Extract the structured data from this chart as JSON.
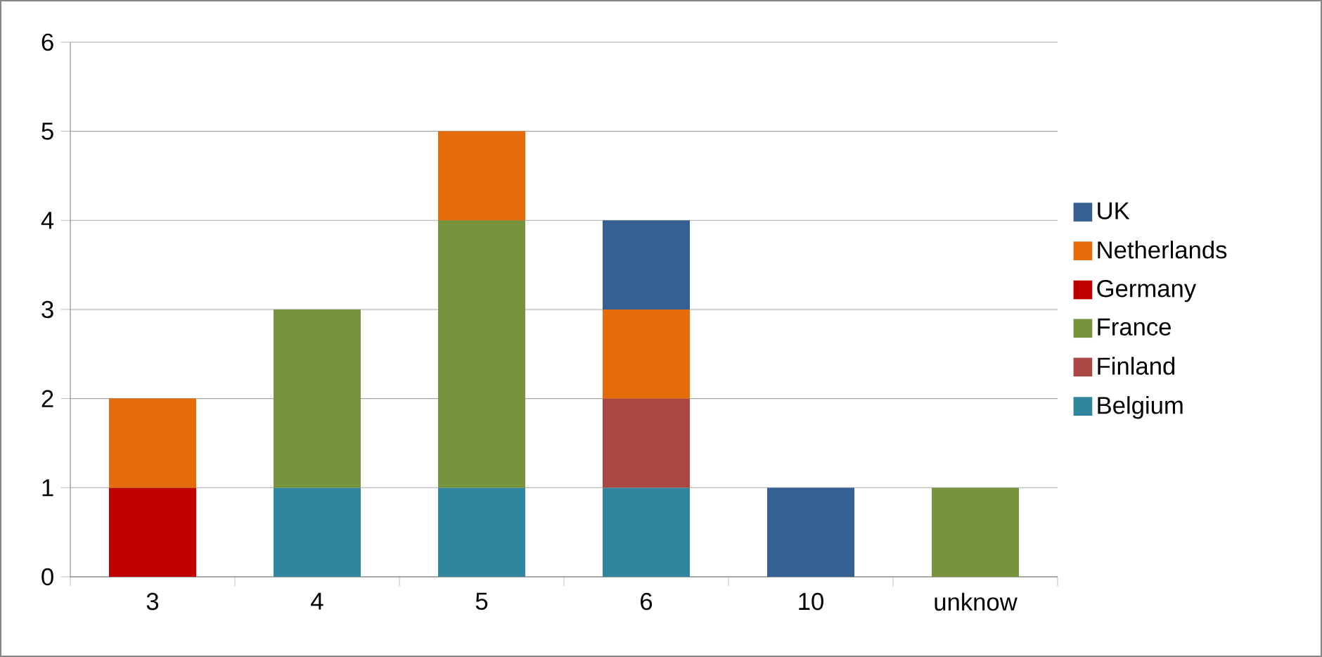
{
  "chart_data": {
    "type": "bar",
    "stacked": true,
    "categories": [
      "3",
      "4",
      "5",
      "6",
      "10",
      "unknow"
    ],
    "series": [
      {
        "name": "Belgium",
        "color": "#31859c",
        "values": [
          null,
          1,
          1,
          1,
          null,
          null
        ]
      },
      {
        "name": "Finland",
        "color": "#aa4643",
        "values": [
          null,
          null,
          null,
          1,
          null,
          null
        ]
      },
      {
        "name": "France",
        "color": "#77933c",
        "values": [
          null,
          2,
          3,
          null,
          null,
          1
        ]
      },
      {
        "name": "Germany",
        "color": "#c00000",
        "values": [
          1,
          null,
          null,
          null,
          null,
          null
        ]
      },
      {
        "name": "Netherlands",
        "color": "#e46c0a",
        "values": [
          1,
          null,
          1,
          1,
          null,
          null
        ]
      },
      {
        "name": "UK",
        "color": "#376092",
        "values": [
          null,
          null,
          null,
          1,
          1,
          null
        ]
      }
    ],
    "ylim": [
      0,
      6
    ],
    "yticks": [
      0,
      1,
      2,
      3,
      4,
      5,
      6
    ],
    "grid": "y",
    "legend": "right"
  }
}
